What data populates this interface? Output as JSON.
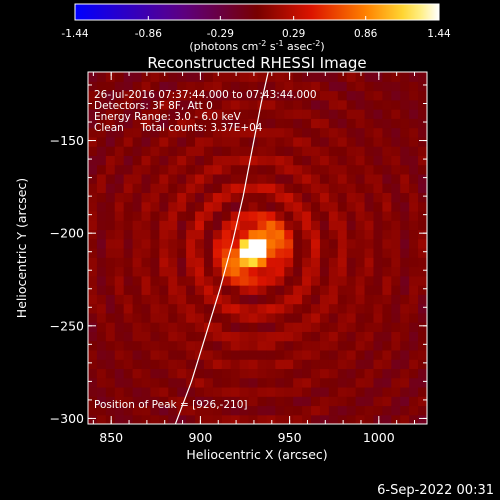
{
  "chart_data": {
    "type": "heatmap",
    "title": "Reconstructed RHESSI Image",
    "colorbar": {
      "ticks": [
        "-1.44",
        "-0.86",
        "-0.29",
        "0.29",
        "0.86",
        "1.44"
      ],
      "range": [
        -1.44,
        1.44
      ],
      "label_main": "(photons cm",
      "label_sup1": "-2",
      "label_mid": " s",
      "label_sup2": "-1",
      "label_end": " asec",
      "label_sup3": "-2",
      "label_close": ")",
      "colormap": "rhessi-fire"
    },
    "info_lines": [
      "26-Jul-2016 07:37:44.000 to 07:43:44.000",
      "Detectors: 3F 8F, Att 0",
      "Energy Range: 3.0 - 6.0 keV",
      "Clean     Total counts: 3.37E+04"
    ],
    "peak_label": "Position of Peak = [926,-210]",
    "peak": [
      926,
      -210
    ],
    "xlabel": "Heliocentric X (arcsec)",
    "ylabel": "Heliocentric Y (arcsec)",
    "xlim": [
      837,
      1027
    ],
    "ylim": [
      -303,
      -113
    ],
    "xticks": [
      850,
      900,
      950,
      1000
    ],
    "xtick_labels": [
      "850",
      "900",
      "950",
      "1000"
    ],
    "yticks": [
      -150,
      -200,
      -250,
      -300
    ],
    "ytick_labels": [
      "−150",
      "−200",
      "−250",
      "−300"
    ],
    "source": {
      "center": [
        930,
        -209
      ],
      "sigma_x": 11,
      "sigma_y": 7,
      "angle_deg": 35,
      "peak_value": 1.44,
      "halo_value": 0.29,
      "halo_sigma": 55
    },
    "limb_curve_x": [
      886,
      895,
      903,
      911,
      918,
      924,
      929,
      934,
      938
    ],
    "limb_curve_y": [
      -303,
      -280,
      -255,
      -230,
      -205,
      -180,
      -155,
      -130,
      -113
    ],
    "limb_color": "#ffffff",
    "background_color": "#000000"
  },
  "footer": {
    "timestamp": "6-Sep-2022 00:31"
  }
}
